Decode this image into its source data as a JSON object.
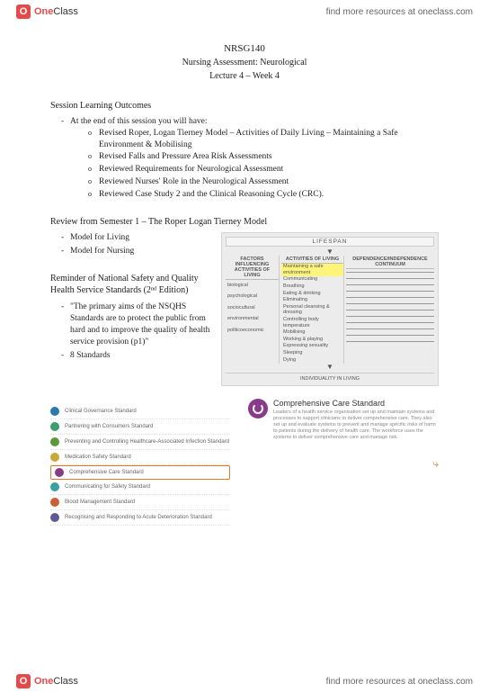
{
  "brand": {
    "logo_letter": "O",
    "name_one": "One",
    "name_class": "Class",
    "tagline": "find more resources at oneclass.com"
  },
  "course": {
    "code": "NRSG140",
    "title": "Nursing Assessment: Neurological",
    "lecture": "Lecture 4 – Week 4"
  },
  "slo": {
    "heading": "Session Learning Outcomes",
    "intro": "At the end of this session you will have:",
    "items": [
      "Revised Roper, Logan Tierney Model – Activities of Daily Living – Maintaining a Safe Environment & Mobilising",
      "Revised Falls and Pressure Area Risk Assessments",
      "Reviewed Requirements for Neurological Assessment",
      "Reviewed Nurses' Role in the Neurological Assessment",
      "Reviewed Case Study 2 and the Clinical Reasoning Cycle (CRC)."
    ]
  },
  "review": {
    "heading": "Review from Semester 1 – The Roper Logan Tierney Model",
    "items": [
      "Model for Living",
      "Model for Nursing"
    ]
  },
  "nsqhs": {
    "heading": "Reminder of National Safety and Quality Health Service Standards (2ⁿᵈ Edition)",
    "quote": "\"The primary aims of the NSQHS Standards are to protect the public from hard and to improve the quality of health service provision (p1)\"",
    "count": "8 Standards"
  },
  "diagram": {
    "lifespan": "LIFESPAN",
    "col1_head": "FACTORS INFLUENCING ACTIVITIES OF LIVING",
    "col2_head": "ACTIVITIES OF LIVING",
    "col3_head": "DEPENDENCE/INDEPENDENCE CONTINUUM",
    "factors": [
      "biological",
      "psychological",
      "sociocultural",
      "environmental",
      "politicoeconomic"
    ],
    "activities": [
      "Maintaining a safe environment",
      "Communicating",
      "Breathing",
      "Eating & drinking",
      "Eliminating",
      "Personal cleansing & dressing",
      "Controlling body temperature",
      "Mobilising",
      "Working & playing",
      "Expressing sexuality",
      "Sleeping",
      "Dying"
    ],
    "highlight_index": 0,
    "individuality": "INDIVIDUALITY IN LIVING"
  },
  "standards": {
    "items": [
      {
        "label": "Clinical Governance Standard",
        "color": "#2a7ab0"
      },
      {
        "label": "Partnering with Consumers Standard",
        "color": "#3aa06a"
      },
      {
        "label": "Preventing and Controlling Healthcare-Associated Infection Standard",
        "color": "#5a9a3a"
      },
      {
        "label": "Medication Safety Standard",
        "color": "#c9a83a"
      },
      {
        "label": "Comprehensive Care Standard",
        "color": "#8a3a8a",
        "selected": true
      },
      {
        "label": "Communicating for Safety Standard",
        "color": "#3aa0a0"
      },
      {
        "label": "Blood Management Standard",
        "color": "#c9603a"
      },
      {
        "label": "Recognising and Responding to Acute Deterioration Standard",
        "color": "#5a5a9a"
      }
    ]
  },
  "comp_care": {
    "title": "Comprehensive Care Standard",
    "desc": "Leaders of a health service organisation set up and maintain systems and processes to support clinicians to deliver comprehensive care. They also set up and evaluate systems to prevent and manage specific risks of harm to patients during the delivery of health care. The workforce uses the systems to deliver comprehensive care and manage risk."
  }
}
